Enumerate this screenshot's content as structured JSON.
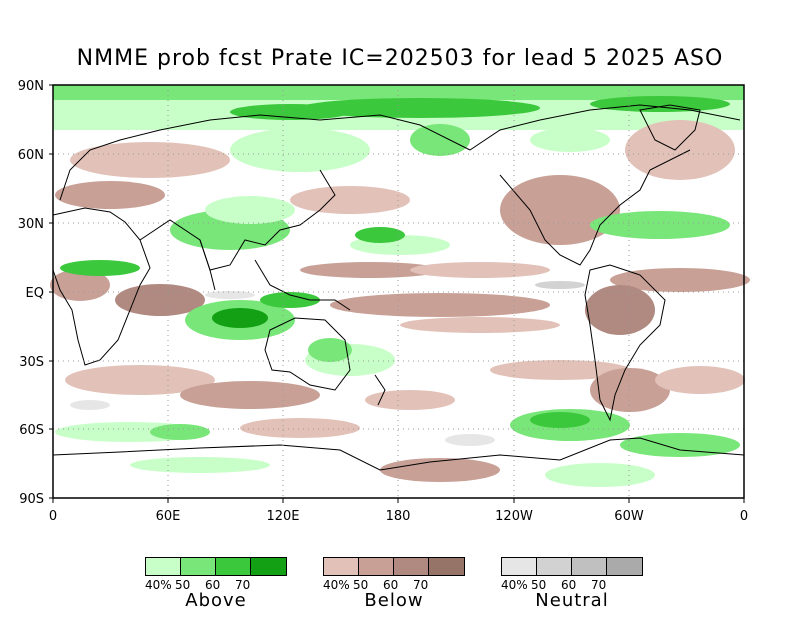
{
  "title": "NMME prob fcst Prate IC=202503 for lead 5 2025 ASO",
  "axes": {
    "y_ticks": [
      "90N",
      "60N",
      "30N",
      "EQ",
      "30S",
      "60S",
      "90S"
    ],
    "x_ticks": [
      "0",
      "60E",
      "120E",
      "180",
      "120W",
      "60W",
      "0"
    ]
  },
  "legends": [
    {
      "name": "Above",
      "ticks": [
        "40%",
        "50",
        "60",
        "70"
      ],
      "colors": [
        "#c8ffc8",
        "#78e678",
        "#3cc83c",
        "#14a014"
      ]
    },
    {
      "name": "Below",
      "ticks": [
        "40%",
        "50",
        "60",
        "70"
      ],
      "colors": [
        "#e2c2b8",
        "#c8a096",
        "#b08a80",
        "#967468"
      ]
    },
    {
      "name": "Neutral",
      "ticks": [
        "40%",
        "50",
        "60",
        "70"
      ],
      "colors": [
        "#e6e6e6",
        "#d2d2d2",
        "#c0c0c0",
        "#aaaaaa"
      ]
    }
  ],
  "colors": {
    "above": [
      "#c8ffc8",
      "#78e678",
      "#3cc83c",
      "#14a014"
    ],
    "below": [
      "#e2c2b8",
      "#c8a096",
      "#b08a80",
      "#967468"
    ],
    "neutral": [
      "#e6e6e6",
      "#d2d2d2"
    ]
  }
}
